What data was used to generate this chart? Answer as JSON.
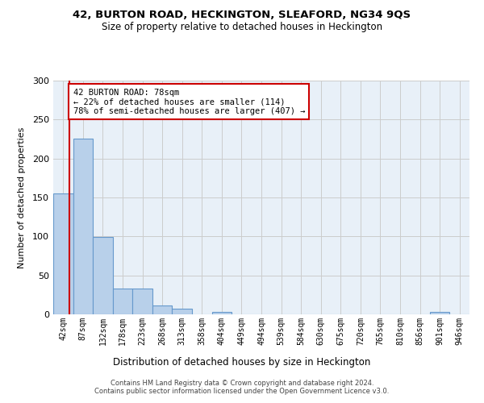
{
  "title1": "42, BURTON ROAD, HECKINGTON, SLEAFORD, NG34 9QS",
  "title2": "Size of property relative to detached houses in Heckington",
  "xlabel": "Distribution of detached houses by size in Heckington",
  "ylabel": "Number of detached properties",
  "bin_labels": [
    "42sqm",
    "87sqm",
    "132sqm",
    "178sqm",
    "223sqm",
    "268sqm",
    "313sqm",
    "358sqm",
    "404sqm",
    "449sqm",
    "494sqm",
    "539sqm",
    "584sqm",
    "630sqm",
    "675sqm",
    "720sqm",
    "765sqm",
    "810sqm",
    "856sqm",
    "901sqm",
    "946sqm"
  ],
  "bar_values": [
    155,
    226,
    99,
    33,
    33,
    11,
    7,
    0,
    3,
    0,
    0,
    0,
    0,
    0,
    0,
    0,
    0,
    0,
    0,
    3,
    0
  ],
  "bar_color": "#b8d0ea",
  "bar_edge_color": "#6699cc",
  "annotation_box_text": "42 BURTON ROAD: 78sqm\n← 22% of detached houses are smaller (114)\n78% of semi-detached houses are larger (407) →",
  "annotation_box_color": "#ffffff",
  "annotation_box_edge_color": "#cc0000",
  "vline_color": "#cc0000",
  "grid_color": "#cccccc",
  "footnote": "Contains HM Land Registry data © Crown copyright and database right 2024.\nContains public sector information licensed under the Open Government Licence v3.0.",
  "ylim": [
    0,
    300
  ],
  "yticks": [
    0,
    50,
    100,
    150,
    200,
    250,
    300
  ],
  "fig_bg_color": "#ffffff",
  "axes_bg_color": "#e8f0f8"
}
